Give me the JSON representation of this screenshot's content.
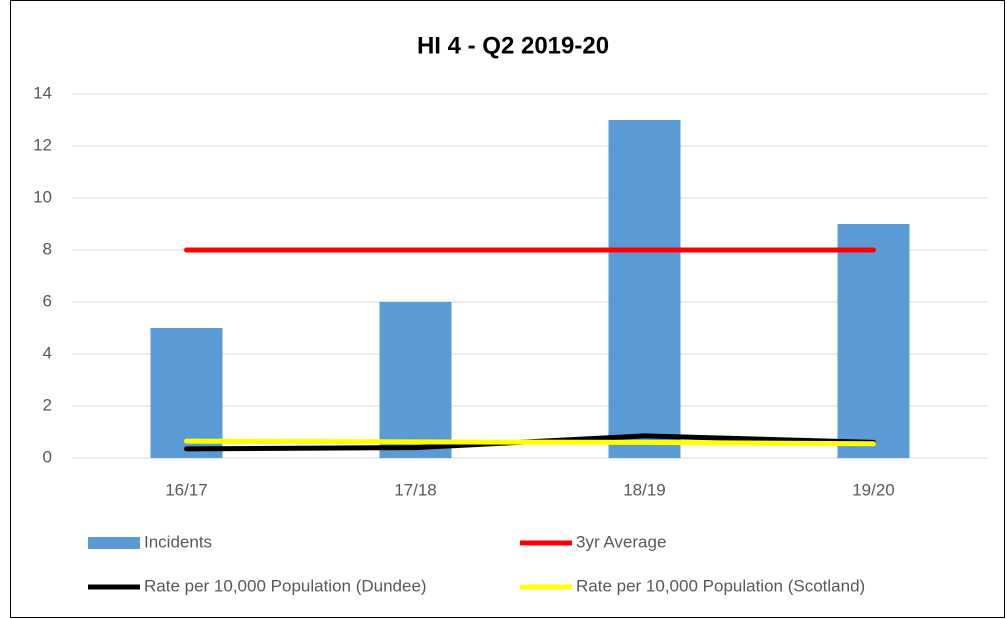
{
  "chart_data": {
    "type": "bar",
    "title": "HI 4 - Q2 2019-20",
    "categories": [
      "16/17",
      "17/18",
      "18/19",
      "19/20"
    ],
    "series": [
      {
        "name": "Incidents",
        "type": "bar",
        "color": "#5b9bd5",
        "values": [
          5,
          6,
          13,
          9
        ]
      },
      {
        "name": "3yr Average",
        "type": "line",
        "color": "#ff0000",
        "values": [
          8,
          8,
          8,
          8
        ]
      },
      {
        "name": "Rate per 10,000 Population (Dundee)",
        "type": "line",
        "color": "#000000",
        "values": [
          0.35,
          0.4,
          0.85,
          0.6
        ]
      },
      {
        "name": "Rate per 10,000 Population (Scotland)",
        "type": "line",
        "color": "#ffff00",
        "values": [
          0.65,
          0.62,
          0.6,
          0.55
        ]
      }
    ],
    "ylim": [
      0,
      14
    ],
    "yticks": [
      0,
      2,
      4,
      6,
      8,
      10,
      12,
      14
    ],
    "grid": true,
    "legend": "bottom"
  }
}
